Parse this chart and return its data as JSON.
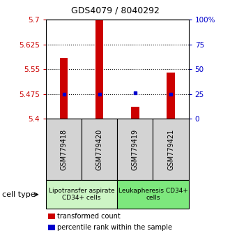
{
  "title": "GDS4079 / 8040292",
  "samples": [
    "GSM779418",
    "GSM779420",
    "GSM779419",
    "GSM779421"
  ],
  "red_values": [
    5.585,
    5.7,
    5.435,
    5.54
  ],
  "blue_values": [
    5.475,
    5.475,
    5.479,
    5.475
  ],
  "ylim": [
    5.4,
    5.7
  ],
  "yticks": [
    5.4,
    5.475,
    5.55,
    5.625,
    5.7
  ],
  "ytick_labels": [
    "5.4",
    "5.475",
    "5.55",
    "5.625",
    "5.7"
  ],
  "y2ticks": [
    0,
    25,
    50,
    75,
    100
  ],
  "y2tick_labels": [
    "0",
    "25",
    "50",
    "75",
    "100%"
  ],
  "grid_lines": [
    5.475,
    5.55,
    5.625
  ],
  "group1_label": "Lipotransfer aspirate\nCD34+ cells",
  "group2_label": "Leukapheresis CD34+\ncells",
  "group1_color": "#cdf5c5",
  "group2_color": "#7de87d",
  "sample_box_color": "#d3d3d3",
  "red_color": "#cc0000",
  "blue_color": "#0000cc",
  "legend_red_label": "transformed count",
  "legend_blue_label": "percentile rank within the sample",
  "cell_type_label": "cell type"
}
